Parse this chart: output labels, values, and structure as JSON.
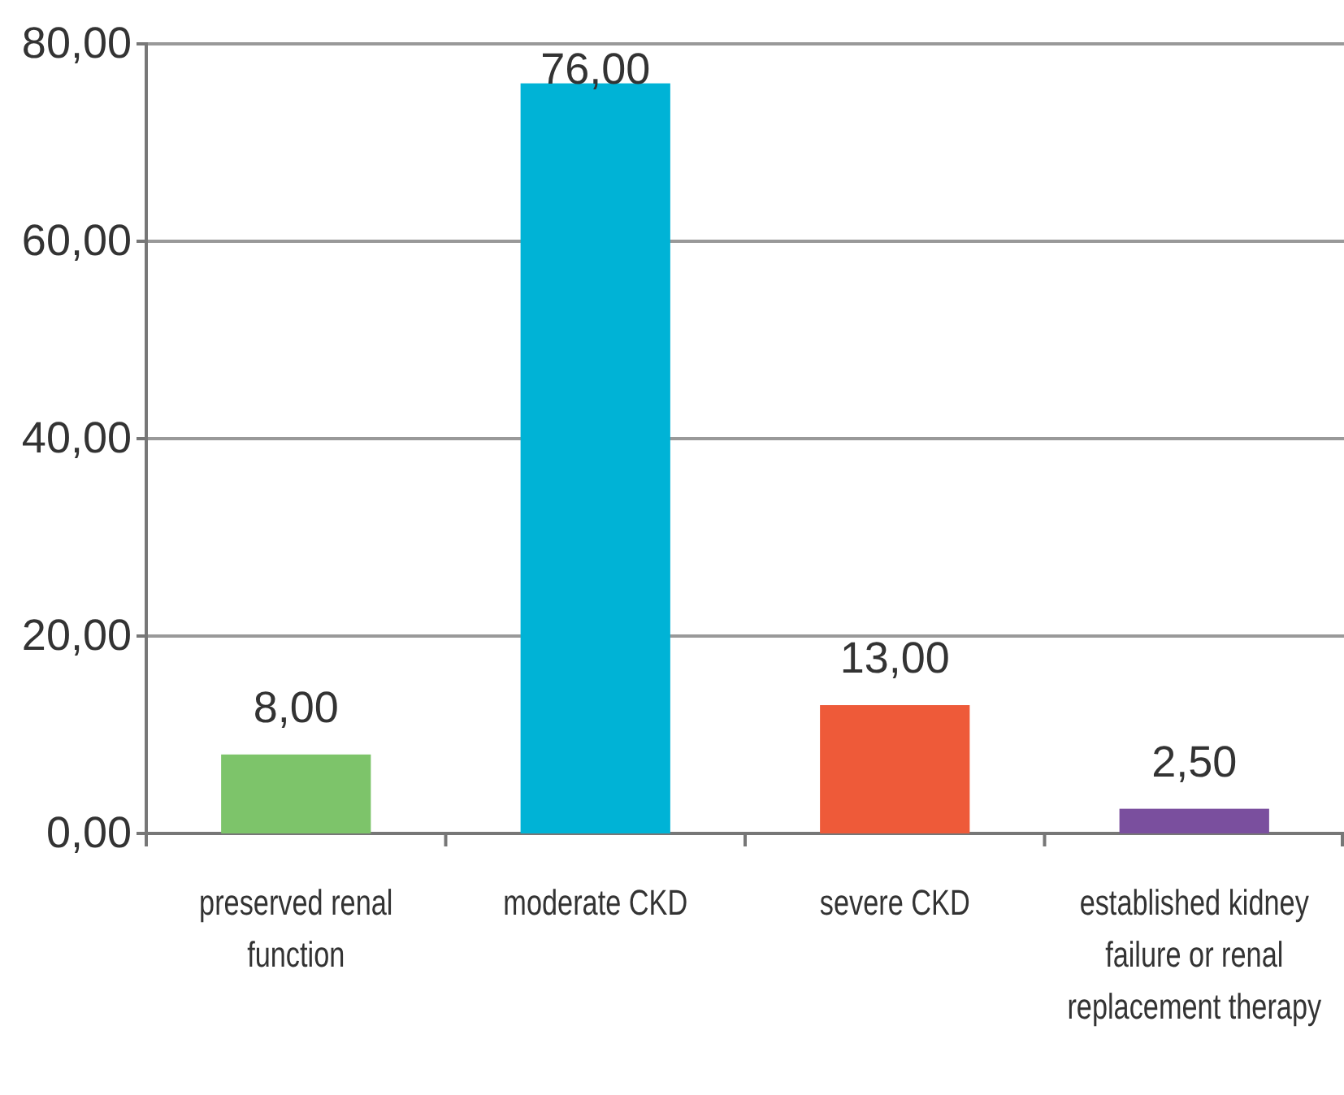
{
  "chart_data": {
    "type": "bar",
    "categories": [
      "preserved renal function",
      "moderate CKD",
      "severe CKD",
      "established kidney failure or renal replacement therapy"
    ],
    "values": [
      8,
      76,
      13,
      2.5
    ],
    "colors": [
      "#7dc46a",
      "#00b3d6",
      "#ee5a39",
      "#7a4f9e"
    ],
    "value_labels": [
      "8,00",
      "76,00",
      "13,00",
      "2,50"
    ],
    "ylim": [
      0,
      80
    ],
    "yticks": [
      {
        "value": 0,
        "label": "0,00"
      },
      {
        "value": 20,
        "label": "20,00"
      },
      {
        "value": 40,
        "label": "40,00"
      },
      {
        "value": 60,
        "label": "60,00"
      },
      {
        "value": 80,
        "label": "80,00"
      }
    ],
    "grid": "y"
  }
}
